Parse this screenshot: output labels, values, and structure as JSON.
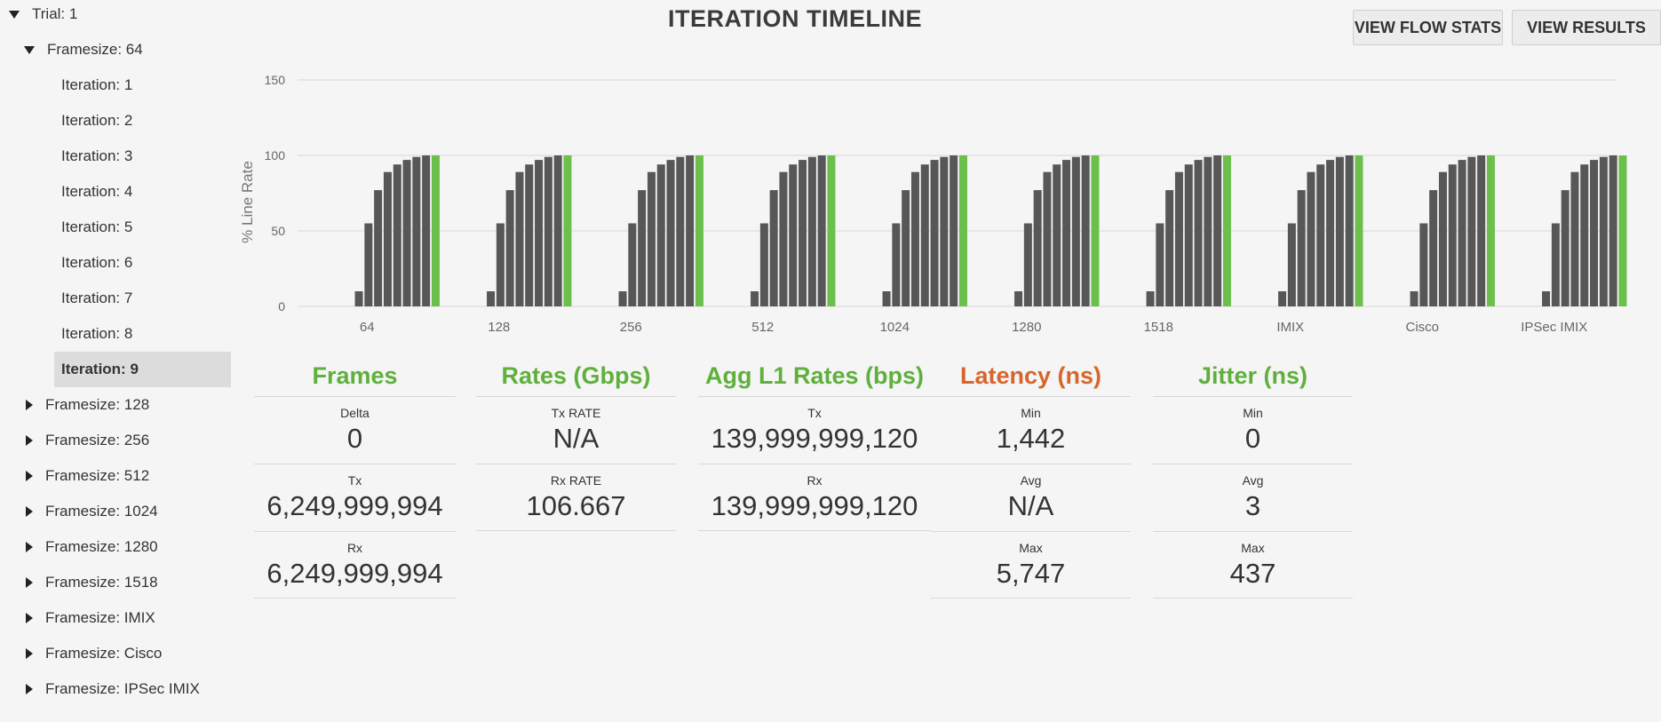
{
  "tree": {
    "trial_label": "Trial: 1",
    "framesize_open": "Framesize: 64",
    "iterations": [
      "Iteration: 1",
      "Iteration: 2",
      "Iteration: 3",
      "Iteration: 4",
      "Iteration: 5",
      "Iteration: 6",
      "Iteration: 7",
      "Iteration: 8",
      "Iteration: 9"
    ],
    "selected_iteration": "Iteration: 9",
    "framesizes_collapsed": [
      "Framesize: 128",
      "Framesize: 256",
      "Framesize: 512",
      "Framesize: 1024",
      "Framesize: 1280",
      "Framesize: 1518",
      "Framesize: IMIX",
      "Framesize: Cisco",
      "Framesize: IPSec IMIX"
    ]
  },
  "header": {
    "title": "ITERATION TIMELINE",
    "view_flow_stats": "VIEW FLOW STATS",
    "view_results": "VIEW RESULTS"
  },
  "chart_data": {
    "type": "bar",
    "ylabel": "% Line Rate",
    "xlabel": "",
    "ylim": [
      0,
      150
    ],
    "yticks": [
      0,
      50,
      100,
      150
    ],
    "grid": true,
    "categories": [
      "64",
      "128",
      "256",
      "512",
      "1024",
      "1280",
      "1518",
      "IMIX",
      "Cisco",
      "IPSec IMIX"
    ],
    "iteration_values": [
      10,
      55,
      77,
      89,
      94,
      97,
      99,
      100,
      100
    ],
    "highlight_last": true,
    "colors": {
      "bar": "#575757",
      "highlight": "#6cbf4a",
      "grid": "#d8d8d8",
      "axis_text": "#666666"
    }
  },
  "stats": {
    "frames": {
      "title": "Frames",
      "rows": [
        {
          "label": "Delta",
          "value": "0"
        },
        {
          "label": "Tx",
          "value": "6,249,999,994"
        },
        {
          "label": "Rx",
          "value": "6,249,999,994"
        }
      ]
    },
    "rates": {
      "title": "Rates (Gbps)",
      "rows": [
        {
          "label": "Tx RATE",
          "value": "N/A"
        },
        {
          "label": "Rx RATE",
          "value": "106.667"
        }
      ]
    },
    "agg": {
      "title": "Agg L1 Rates (bps)",
      "rows": [
        {
          "label": "Tx",
          "value": "139,999,999,120"
        },
        {
          "label": "Rx",
          "value": "139,999,999,120"
        }
      ]
    },
    "latency": {
      "title": "Latency (ns)",
      "rows": [
        {
          "label": "Min",
          "value": "1,442"
        },
        {
          "label": "Avg",
          "value": "N/A"
        },
        {
          "label": "Max",
          "value": "5,747"
        }
      ]
    },
    "jitter": {
      "title": "Jitter (ns)",
      "rows": [
        {
          "label": "Min",
          "value": "0"
        },
        {
          "label": "Avg",
          "value": "3"
        },
        {
          "label": "Max",
          "value": "437"
        }
      ]
    }
  }
}
